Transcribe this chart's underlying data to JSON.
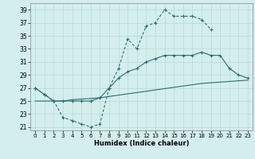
{
  "title": "",
  "xlabel": "Humidex (Indice chaleur)",
  "bg_color": "#d4eeee",
  "grid_color": "#b8d8d8",
  "line_color": "#2d6e6e",
  "xlim": [
    -0.5,
    23.5
  ],
  "ylim": [
    20.5,
    40
  ],
  "xticks": [
    0,
    1,
    2,
    3,
    4,
    5,
    6,
    7,
    8,
    9,
    10,
    11,
    12,
    13,
    14,
    15,
    16,
    17,
    18,
    19,
    20,
    21,
    22,
    23
  ],
  "yticks": [
    21,
    23,
    25,
    27,
    29,
    31,
    33,
    35,
    37,
    39
  ],
  "line1_x": [
    0,
    1,
    2,
    3,
    4,
    5,
    6,
    7,
    8,
    9,
    10,
    11,
    12,
    13,
    14,
    15,
    16,
    17,
    18,
    19
  ],
  "line1_y": [
    27.0,
    26.0,
    25.0,
    22.5,
    22.0,
    21.5,
    21.0,
    21.5,
    27.0,
    30.0,
    34.5,
    33.0,
    36.5,
    37.0,
    39.0,
    38.0,
    38.0,
    38.0,
    37.5,
    36.0
  ],
  "line2_x": [
    0,
    1,
    2,
    3,
    4,
    5,
    6,
    7,
    8,
    9,
    10,
    11,
    12,
    13,
    14,
    15,
    16,
    17,
    18,
    19,
    20,
    21,
    22,
    23
  ],
  "line2_y": [
    27.0,
    26.0,
    25.0,
    25.0,
    25.0,
    25.0,
    25.0,
    25.5,
    27.0,
    28.5,
    29.5,
    30.0,
    31.0,
    31.5,
    32.0,
    32.0,
    32.0,
    32.0,
    32.5,
    32.0,
    32.0,
    30.0,
    29.0,
    28.5
  ],
  "line3_x": [
    0,
    1,
    2,
    3,
    4,
    5,
    6,
    7,
    8,
    9,
    10,
    11,
    12,
    13,
    14,
    15,
    16,
    17,
    18,
    19,
    20,
    21,
    22,
    23
  ],
  "line3_y": [
    25.0,
    25.0,
    25.0,
    25.0,
    25.2,
    25.3,
    25.4,
    25.5,
    25.7,
    25.9,
    26.1,
    26.3,
    26.5,
    26.7,
    26.9,
    27.1,
    27.3,
    27.5,
    27.7,
    27.8,
    27.9,
    28.0,
    28.1,
    28.2
  ]
}
